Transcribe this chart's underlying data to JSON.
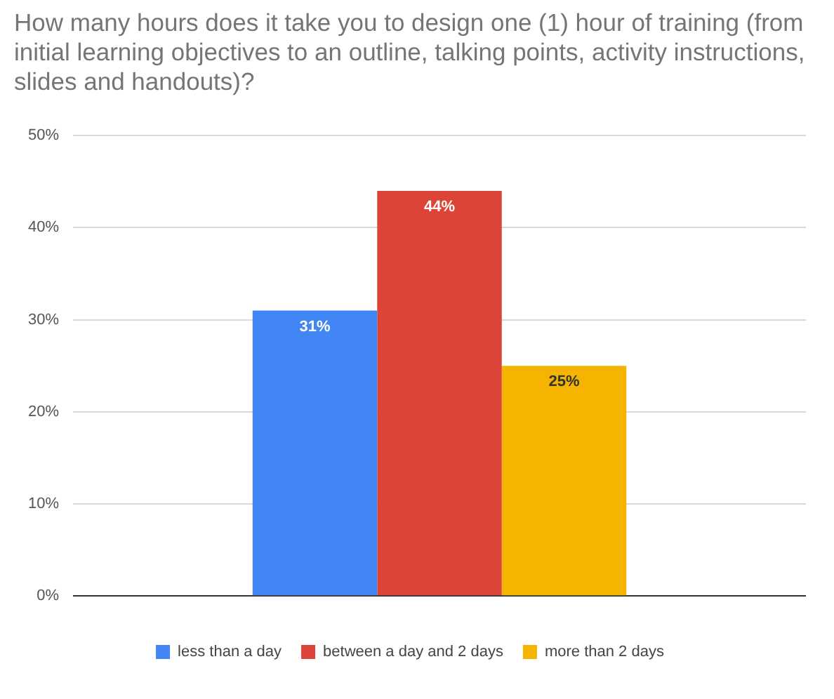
{
  "chart_data": {
    "type": "bar",
    "title": "How many hours does it take you to design one (1) hour of training (from initial learning objectives to an outline, talking points, activity instructions, slides and handouts)?",
    "categories": [
      null
    ],
    "series": [
      {
        "name": "less than a day",
        "color": "#4285f4",
        "values": [
          31
        ],
        "value_labels": [
          "31%"
        ]
      },
      {
        "name": "between a day and 2 days",
        "color": "#db4437",
        "values": [
          44
        ],
        "value_labels": [
          "44%"
        ]
      },
      {
        "name": "more than 2 days",
        "color": "#f4b400",
        "values": [
          25
        ],
        "value_labels": [
          "25%"
        ]
      }
    ],
    "ylim": [
      0,
      50
    ],
    "yticks": [
      {
        "value": 0,
        "label": "0%"
      },
      {
        "value": 10,
        "label": "10%"
      },
      {
        "value": 20,
        "label": "20%"
      },
      {
        "value": 30,
        "label": "30%"
      },
      {
        "value": 40,
        "label": "40%"
      },
      {
        "value": 50,
        "label": "50%"
      }
    ],
    "grid": "y",
    "legend": "bottom"
  }
}
